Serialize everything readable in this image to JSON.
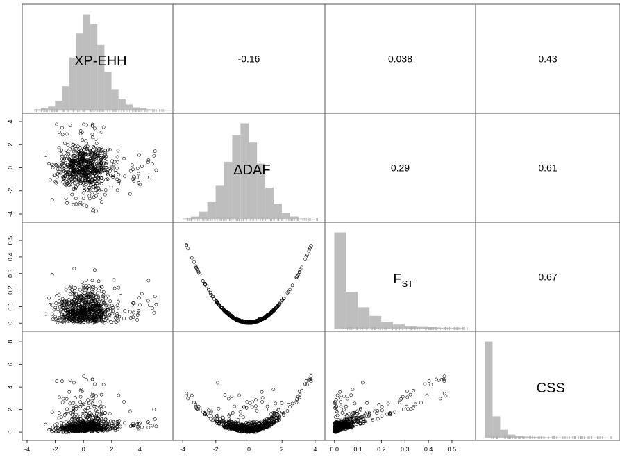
{
  "chart_data": {
    "type": "scatter",
    "variables": [
      {
        "id": "xpehh",
        "label": "XP-EHH",
        "sub": "",
        "range": [
          -4,
          6
        ],
        "ticks": [
          -4,
          -2,
          0,
          2,
          4
        ],
        "mean": 0,
        "sd": 1,
        "skew": "normal"
      },
      {
        "id": "ddaf",
        "label": "ΔDAF",
        "sub": "",
        "range": [
          -4.3,
          4.3
        ],
        "ticks": [
          -4,
          -2,
          0,
          2,
          4
        ],
        "mean": 0,
        "sd": 1,
        "skew": "normal"
      },
      {
        "id": "fst",
        "label": "F",
        "sub": "ST",
        "range": [
          -0.02,
          0.58
        ],
        "ticks": [
          0.0,
          0.1,
          0.2,
          0.3,
          0.4,
          0.5
        ],
        "mean": 0.06,
        "sd": 0.08,
        "skew": "right"
      },
      {
        "id": "css",
        "label": "CSS",
        "sub": "",
        "range": [
          -0.3,
          8.5
        ],
        "ticks": [
          0,
          2,
          4,
          6,
          8
        ],
        "mean": 0.4,
        "sd": 0.7,
        "skew": "right"
      }
    ],
    "correlations": [
      {
        "row": 0,
        "col": 1,
        "value": "-0.16"
      },
      {
        "row": 0,
        "col": 2,
        "value": "0.038"
      },
      {
        "row": 0,
        "col": 3,
        "value": "0.43"
      },
      {
        "row": 1,
        "col": 2,
        "value": "0.29"
      },
      {
        "row": 1,
        "col": 3,
        "value": "0.61"
      },
      {
        "row": 2,
        "col": 3,
        "value": "0.67"
      }
    ],
    "histograms": [
      {
        "var": 0,
        "bin_start": -3.5,
        "bin_width": 0.5,
        "counts": [
          1,
          2,
          4,
          10,
          25,
          55,
          80,
          100,
          90,
          68,
          40,
          22,
          12,
          6,
          3,
          2,
          1,
          0.5,
          0.3,
          0.2
        ]
      },
      {
        "var": 1,
        "bin_start": -4.0,
        "bin_width": 0.5,
        "counts": [
          1,
          3,
          8,
          18,
          35,
          60,
          88,
          100,
          80,
          58,
          33,
          16,
          7,
          3,
          1,
          0.5
        ]
      },
      {
        "var": 2,
        "bin_start": 0.0,
        "bin_width": 0.05,
        "counts": [
          100,
          38,
          22,
          13,
          7,
          4,
          2.5,
          1.5,
          1,
          0.6,
          0.4
        ]
      },
      {
        "var": 3,
        "bin_start": 0.0,
        "bin_width": 0.5,
        "counts": [
          100,
          22,
          8,
          3,
          1.5,
          0.8,
          0.5,
          0.3,
          0.2,
          0.1,
          0.1,
          0.05,
          0.05,
          0.05,
          0.05,
          0.05
        ]
      }
    ],
    "scatter_panels": [
      {
        "row": 1,
        "col": 0,
        "x_var": "XP-EHH",
        "y_var": "ΔDAF",
        "pattern": "uncorrelated normal cloud, slightly sparser toward high XP-EHH"
      },
      {
        "row": 2,
        "col": 0,
        "x_var": "XP-EHH",
        "y_var": "FST",
        "pattern": "FST right-skewed, uncorrelated with XP-EHH"
      },
      {
        "row": 2,
        "col": 1,
        "x_var": "ΔDAF",
        "y_var": "FST",
        "pattern": "V-shape: FST ≈ 0.033·ΔDAF²·sign-independent"
      },
      {
        "row": 3,
        "col": 0,
        "x_var": "XP-EHH",
        "y_var": "CSS",
        "pattern": "CSS increases with XP-EHH"
      },
      {
        "row": 3,
        "col": 1,
        "x_var": "ΔDAF",
        "y_var": "CSS",
        "pattern": "CSS rises sharply for high ΔDAF"
      },
      {
        "row": 3,
        "col": 2,
        "x_var": "FST",
        "y_var": "CSS",
        "pattern": "CSS increases with FST"
      }
    ],
    "n_points_rendered": 700,
    "grid": false,
    "legend": "none",
    "title": ""
  }
}
